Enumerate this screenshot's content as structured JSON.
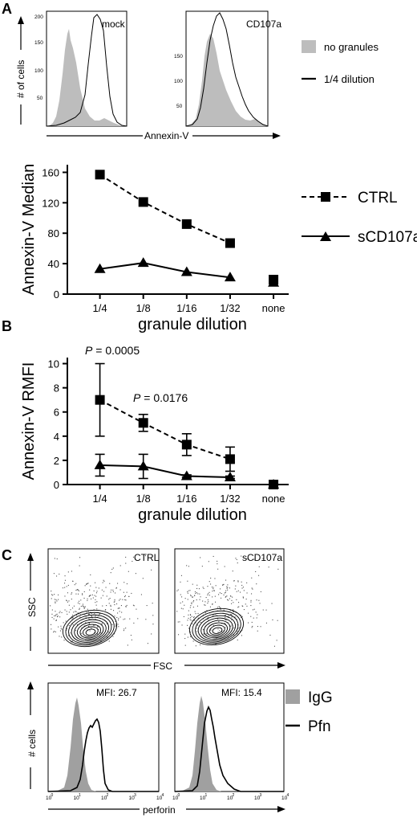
{
  "panels": {
    "a": {
      "letter": "A",
      "hist_ylabel": "# of cells",
      "hist_xlabel": "Annexin-V",
      "hist_left_title": "mock",
      "hist_right_title": "CD107a",
      "hist_left_ticks": [
        "200",
        "150",
        "100",
        "50"
      ],
      "hist_right_ticks": [
        "150",
        "100",
        "50"
      ],
      "legend": [
        {
          "label": "no granules",
          "style": "filled",
          "color": "#bdbdbd"
        },
        {
          "label": "1/4 dilution",
          "style": "line",
          "color": "#000000"
        }
      ]
    },
    "b": {
      "letter": "B",
      "p_values": [
        "0.0005",
        "0.0176"
      ],
      "p_symbol": "P",
      "p_eq": " = "
    },
    "c": {
      "letter": "C",
      "scatter_ylabel": "SSC",
      "scatter_xlabel": "FSC",
      "scatter_left_title": "CTRL",
      "scatter_right_title": "sCD107a",
      "hist_ylabel": "# cells",
      "hist_xlabel": "perforin",
      "mfi_left": "MFI: 26.7",
      "mfi_right": "MFI: 15.4",
      "log_ticks": [
        {
          "base": "10",
          "exp": "0"
        },
        {
          "base": "10",
          "exp": "1"
        },
        {
          "base": "10",
          "exp": "2"
        },
        {
          "base": "10",
          "exp": "3"
        },
        {
          "base": "10",
          "exp": "4"
        }
      ],
      "legend": [
        {
          "label": "IgG",
          "style": "filled",
          "color": "#a0a0a0"
        },
        {
          "label": "Pfn",
          "style": "line",
          "color": "#000000"
        }
      ]
    }
  },
  "chart_data": [
    {
      "type": "line",
      "ylabel": "Annexin-V Median",
      "xlabel": "granule dilution",
      "categories": [
        "1/4",
        "1/8",
        "1/16",
        "1/32",
        "none"
      ],
      "ylim": [
        0,
        170
      ],
      "yticks": [
        0,
        40,
        80,
        120,
        160
      ],
      "series": [
        {
          "name": "CTRL",
          "marker": "square",
          "dash": true,
          "values": [
            157,
            121,
            92,
            67,
            null
          ],
          "none_value": 19
        },
        {
          "name": "sCD107a",
          "marker": "triangle",
          "dash": false,
          "values": [
            33,
            41,
            29,
            22,
            null
          ],
          "none_value": 15
        }
      ]
    },
    {
      "type": "line",
      "ylabel": "Annexin-V RMFI",
      "xlabel": "granule dilution",
      "categories": [
        "1/4",
        "1/8",
        "1/16",
        "1/32",
        "none"
      ],
      "ylim": [
        0,
        10.5
      ],
      "yticks": [
        0,
        2,
        4,
        6,
        8,
        10
      ],
      "series": [
        {
          "marker": "square",
          "dash": true,
          "values": [
            7.0,
            5.1,
            3.3,
            2.1,
            null
          ],
          "errors": [
            3.0,
            0.7,
            0.9,
            1.0,
            null
          ],
          "none_value": 0.0
        },
        {
          "marker": "triangle",
          "dash": false,
          "values": [
            1.6,
            1.5,
            0.7,
            0.6,
            null
          ],
          "errors": [
            0.9,
            1.0,
            0.1,
            0.1,
            null
          ],
          "none_value": 0.0
        }
      ]
    }
  ]
}
